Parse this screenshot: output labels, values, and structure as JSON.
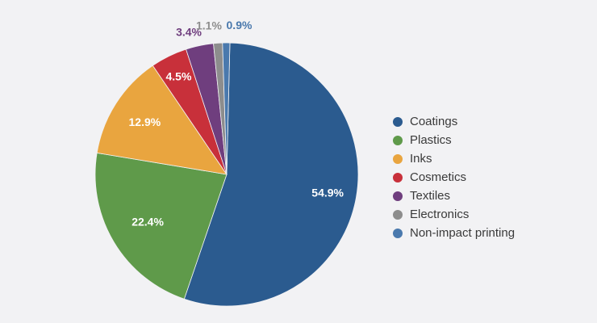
{
  "chart_data": {
    "type": "pie",
    "title": "",
    "categories": [
      "Coatings",
      "Plastics",
      "Inks",
      "Cosmetics",
      "Textiles",
      "Electronics",
      "Non-impact printing"
    ],
    "values": [
      54.9,
      22.4,
      12.9,
      4.5,
      3.4,
      1.1,
      0.9
    ],
    "labels": [
      "54.9%",
      "22.4%",
      "12.9%",
      "4.5%",
      "3.4%",
      "1.1%",
      "0.9%"
    ],
    "colors": [
      "#2b5b8f",
      "#5f9a4a",
      "#e9a53f",
      "#c8303a",
      "#6f3e7e",
      "#8d8d8d",
      "#4a79ad"
    ],
    "label_colors": [
      "#ffffff",
      "#ffffff",
      "#ffffff",
      "#ffffff",
      "#6f3e7e",
      "#8d8d8d",
      "#4a79ad"
    ],
    "legend_position": "right"
  }
}
